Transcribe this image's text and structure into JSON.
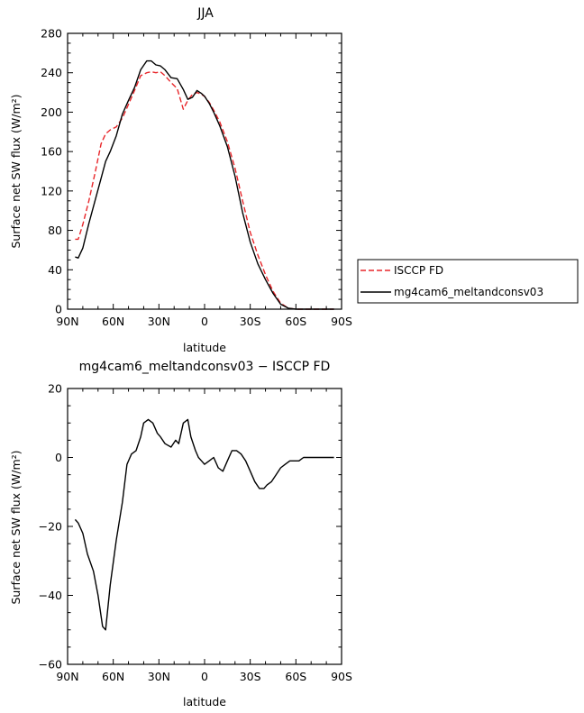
{
  "chart_data": [
    {
      "type": "line",
      "title": "JJA",
      "xlabel": "latitude",
      "ylabel": "Surface net SW flux (W/m²)",
      "ylim": [
        0,
        280
      ],
      "xlim": [
        90,
        -90
      ],
      "x_ticks": [
        90,
        60,
        30,
        0,
        -30,
        -60,
        -90
      ],
      "x_tick_labels": [
        "90N",
        "60N",
        "30N",
        "0",
        "30S",
        "60S",
        "90S"
      ],
      "y_ticks": [
        0,
        40,
        80,
        120,
        160,
        200,
        240,
        280
      ],
      "y_tick_labels": [
        "0",
        "40",
        "80",
        "120",
        "160",
        "200",
        "240",
        "280"
      ],
      "legend": "right",
      "series": [
        {
          "name": "ISCCP FD",
          "color": "#e8262a",
          "dash": true,
          "x": [
            85,
            83,
            80,
            76,
            72,
            68,
            65,
            62,
            58,
            54,
            50,
            46,
            42,
            38,
            35,
            32,
            29,
            26,
            22,
            18,
            14,
            11,
            8,
            5,
            2,
            0,
            -3,
            -6,
            -10,
            -15,
            -20,
            -25,
            -30,
            -35,
            -40,
            -45,
            -50,
            -55,
            -60,
            -65,
            -70,
            -75,
            -80,
            -85
          ],
          "y": [
            71,
            71,
            86,
            110,
            138,
            168,
            178,
            182,
            185,
            194,
            208,
            222,
            237,
            240,
            241,
            240,
            241,
            237,
            230,
            224,
            203,
            212,
            218,
            220,
            218,
            216,
            210,
            202,
            190,
            170,
            143,
            110,
            78,
            55,
            35,
            18,
            6,
            1,
            0,
            0,
            0,
            0,
            0,
            0
          ]
        },
        {
          "name": "mg4cam6_meltandconsv03",
          "color": "#000000",
          "dash": false,
          "x": [
            85,
            83,
            80,
            76,
            72,
            68,
            65,
            62,
            58,
            54,
            50,
            46,
            42,
            38,
            35,
            32,
            29,
            26,
            22,
            18,
            14,
            11,
            8,
            5,
            2,
            0,
            -3,
            -6,
            -10,
            -15,
            -20,
            -25,
            -30,
            -35,
            -40,
            -45,
            -50,
            -55,
            -60,
            -65,
            -70,
            -75,
            -80,
            -85
          ],
          "y": [
            53,
            52,
            62,
            87,
            110,
            133,
            150,
            160,
            176,
            198,
            212,
            225,
            243,
            252,
            252,
            248,
            247,
            243,
            235,
            234,
            223,
            213,
            215,
            222,
            219,
            216,
            209,
            200,
            186,
            165,
            135,
            98,
            68,
            46,
            30,
            16,
            5,
            1,
            0,
            0,
            0,
            0,
            0,
            0
          ]
        }
      ]
    },
    {
      "type": "line",
      "title": "mg4cam6_meltandconsv03 − ISCCP FD",
      "xlabel": "latitude",
      "ylabel": "Surface net SW flux (W/m²)",
      "ylim": [
        -60,
        20
      ],
      "xlim": [
        90,
        -90
      ],
      "x_ticks": [
        90,
        60,
        30,
        0,
        -30,
        -60,
        -90
      ],
      "x_tick_labels": [
        "90N",
        "60N",
        "30N",
        "0",
        "30S",
        "60S",
        "90S"
      ],
      "y_ticks": [
        -60,
        -40,
        -20,
        0,
        20
      ],
      "y_tick_labels": [
        "−60",
        "−40",
        "−20",
        "0",
        "20"
      ],
      "series": [
        {
          "color": "#000000",
          "dash": false,
          "x": [
            85,
            83,
            80,
            77,
            73,
            70,
            67,
            65,
            62,
            58,
            54,
            51,
            48,
            45,
            42,
            40,
            37,
            34,
            31,
            29,
            26,
            22,
            19,
            17,
            14,
            11,
            9,
            6,
            4,
            2,
            0,
            -3,
            -6,
            -9,
            -12,
            -15,
            -18,
            -21,
            -24,
            -27,
            -30,
            -33,
            -36,
            -39,
            -41,
            -44,
            -47,
            -50,
            -53,
            -56,
            -59,
            -62,
            -65,
            -68,
            -71,
            -74,
            -77,
            -80,
            -85
          ],
          "y": [
            -18,
            -19,
            -22,
            -28,
            -33,
            -40,
            -49,
            -50,
            -37,
            -24,
            -13,
            -2,
            1,
            2,
            6,
            10,
            11,
            10,
            7,
            6,
            4,
            3,
            5,
            4,
            10,
            11,
            6,
            2,
            0,
            -1,
            -2,
            -1,
            0,
            -3,
            -4,
            -1,
            2,
            2,
            1,
            -1,
            -4,
            -7,
            -9,
            -9,
            -8,
            -7,
            -5,
            -3,
            -2,
            -1,
            -1,
            -1,
            0,
            0,
            0,
            0,
            0,
            0,
            0
          ]
        }
      ]
    }
  ]
}
